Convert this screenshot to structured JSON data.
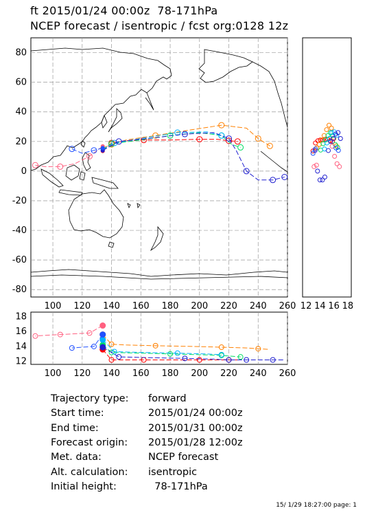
{
  "header": {
    "line1": "ft 2015/01/24 00:00z  78-171hPa",
    "line2": "NCEP forecast / isentropic / fcst org:0128 12z"
  },
  "map": {
    "lon_range": [
      85,
      260
    ],
    "lat_range": [
      -85,
      90
    ],
    "x_ticks": [
      "100",
      "120",
      "140",
      "160",
      "180",
      "200",
      "220",
      "240",
      "260"
    ],
    "y_ticks": [
      "80",
      "60",
      "40",
      "20",
      "0",
      "-20",
      "-40",
      "-60",
      "-80"
    ]
  },
  "side_panel": {
    "x_ticks": [
      "12",
      "14",
      "16",
      "18"
    ]
  },
  "bottom_panel": {
    "y_ticks": [
      "18",
      "16",
      "14",
      "12"
    ],
    "x_ticks": [
      "100",
      "120",
      "140",
      "160",
      "180",
      "200",
      "220",
      "240",
      "260"
    ]
  },
  "trajectories": [
    {
      "color": "#ff0000",
      "points": [
        [
          134,
          13.6
        ],
        [
          140,
          19
        ],
        [
          150,
          20.5
        ],
        [
          162,
          21
        ],
        [
          180,
          21
        ],
        [
          200,
          21.5
        ],
        [
          212,
          21.5
        ],
        [
          220,
          20.5
        ],
        [
          226,
          20
        ]
      ]
    },
    {
      "color": "#ff8000",
      "points": [
        [
          134,
          15.6
        ],
        [
          140,
          18
        ],
        [
          150,
          21
        ],
        [
          170,
          24
        ],
        [
          195,
          28
        ],
        [
          215,
          31
        ],
        [
          232,
          29
        ],
        [
          240,
          22
        ],
        [
          248,
          17
        ]
      ]
    },
    {
      "color": "#00dd60",
      "points": [
        [
          134,
          14.2
        ],
        [
          140,
          18.5
        ],
        [
          160,
          21
        ],
        [
          180,
          24
        ],
        [
          200,
          26
        ],
        [
          215,
          24
        ],
        [
          222,
          18
        ],
        [
          228,
          16
        ]
      ]
    },
    {
      "color": "#00b0ff",
      "points": [
        [
          134,
          14.9
        ],
        [
          142,
          19
        ],
        [
          160,
          22
        ],
        [
          185,
          26
        ],
        [
          205,
          26.5
        ],
        [
          215,
          24
        ]
      ]
    },
    {
      "color": "#2020d0",
      "points": [
        [
          134,
          13.9
        ],
        [
          145,
          20
        ],
        [
          165,
          22
        ],
        [
          190,
          25
        ],
        [
          210,
          26
        ],
        [
          220,
          22
        ],
        [
          225,
          14
        ],
        [
          232,
          0
        ],
        [
          240,
          -6
        ],
        [
          250,
          -6
        ],
        [
          258,
          -4
        ]
      ]
    },
    {
      "color": "#ff6080",
      "points": [
        [
          134,
          16.8
        ],
        [
          125,
          10
        ],
        [
          115,
          5
        ],
        [
          105,
          3
        ],
        [
          95,
          3
        ],
        [
          88,
          4
        ]
      ]
    },
    {
      "color": "#2050ff",
      "points": [
        [
          134,
          15.6
        ],
        [
          128,
          14
        ],
        [
          120,
          12
        ],
        [
          113,
          15
        ]
      ]
    }
  ],
  "info": {
    "rows": [
      {
        "label": "Trajectory type:",
        "value": "forward"
      },
      {
        "label": "Start time:",
        "value": "2015/01/24 00:00z"
      },
      {
        "label": "End time:",
        "value": "2015/01/31 00:00z"
      },
      {
        "label": "Forecast origin:",
        "value": "2015/01/28 12:00z"
      },
      {
        "label": "Met. data:",
        "value": "NCEP forecast"
      },
      {
        "label": "Alt. calculation:",
        "value": "isentropic"
      },
      {
        "label": "Initial height:",
        "value": "  78-171hPa"
      }
    ]
  },
  "footer": "15/ 1/29 18:27:00 page: 1"
}
